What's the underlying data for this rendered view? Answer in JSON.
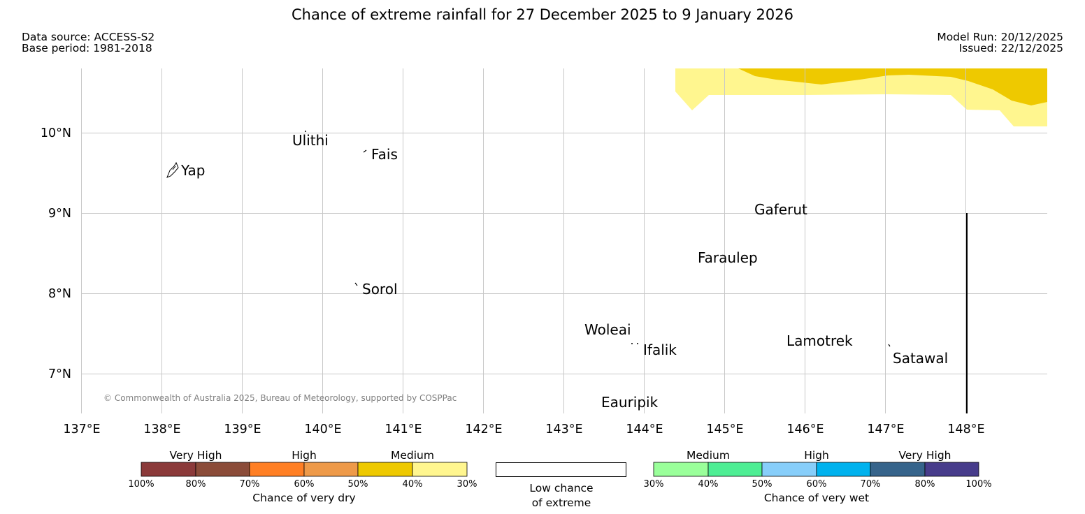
{
  "title": "Chance of extreme rainfall for 27 December 2025 to 9 January 2026",
  "header": {
    "data_source": "Data source: ACCESS-S2",
    "base_period": "Base period: 1981-2018",
    "model_run": "Model Run: 20/12/2025",
    "issued": "Issued: 22/12/2025"
  },
  "map": {
    "lon_ticks": [
      "137°E",
      "138°E",
      "139°E",
      "140°E",
      "141°E",
      "142°E",
      "143°E",
      "144°E",
      "145°E",
      "146°E",
      "147°E",
      "148°E"
    ],
    "lat_ticks": [
      "10°N",
      "9°N",
      "8°N",
      "7°N"
    ],
    "places": [
      "Yap",
      "Ulithi",
      "Fais",
      "Sorol",
      "Gaferut",
      "Faraulep",
      "Woleai",
      "Ifalik",
      "Eauripik",
      "Lamotrek",
      "Satawal"
    ],
    "copyright": "© Commonwealth of Australia 2025, Bureau of Meteorology, supported by COSPPac",
    "shading": [
      {
        "category": "Medium 30-40%",
        "color": "#fff68f"
      },
      {
        "category": "Medium 40-50%",
        "color": "#eec900"
      }
    ]
  },
  "legend": {
    "dry": {
      "groups": [
        "Very High",
        "High",
        "Medium"
      ],
      "ticks": [
        "100%",
        "80%",
        "70%",
        "60%",
        "50%",
        "40%",
        "30%"
      ],
      "colors": [
        "#8b3a3a",
        "#8b4c39",
        "#ff7f24",
        "#ee9a49",
        "#eec900",
        "#fff68f"
      ],
      "label": "Chance of very dry"
    },
    "low": {
      "label_line1": "Low chance",
      "label_line2": "of extreme",
      "color": "#ffffff"
    },
    "wet": {
      "groups": [
        "Medium",
        "High",
        "Very High"
      ],
      "ticks": [
        "30%",
        "40%",
        "50%",
        "60%",
        "70%",
        "80%",
        "100%"
      ],
      "colors": [
        "#9aff9a",
        "#4eee94",
        "#87cefa",
        "#00b2ee",
        "#36648b",
        "#473c8b"
      ],
      "label": "Chance of very wet"
    }
  }
}
